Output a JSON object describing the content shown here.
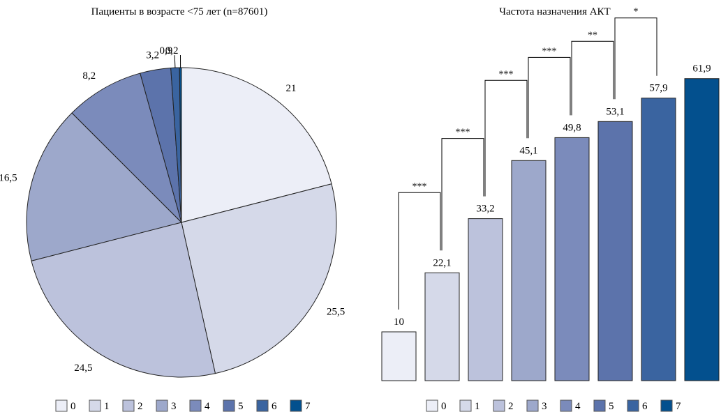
{
  "categories": [
    "0",
    "1",
    "2",
    "3",
    "4",
    "5",
    "6",
    "7"
  ],
  "colors": [
    "#eceef7",
    "#d5d9e9",
    "#bcc2dc",
    "#9da8cb",
    "#7b8bbb",
    "#5c73ab",
    "#3a64a0",
    "#03508e"
  ],
  "chart_data": [
    {
      "type": "pie",
      "title": "Пациенты в возрасте <75 лет (n=87601)",
      "categories": [
        "0",
        "1",
        "2",
        "3",
        "4",
        "5",
        "6",
        "7"
      ],
      "values": [
        21,
        25.5,
        24.5,
        16.5,
        8.2,
        3.2,
        0.9,
        0.2
      ],
      "labels": [
        "21",
        "25,5",
        "24,5",
        "16,5",
        "8,2",
        "3,2",
        "0,9",
        "0,2"
      ],
      "legend": "bottom"
    },
    {
      "type": "bar",
      "title": "Частота назначения АКТ",
      "categories": [
        "0",
        "1",
        "2",
        "3",
        "4",
        "5",
        "6",
        "7"
      ],
      "values": [
        10,
        22.1,
        33.2,
        45.1,
        49.8,
        53.1,
        57.9,
        61.9
      ],
      "labels": [
        "10",
        "22,1",
        "33,2",
        "45,1",
        "49,8",
        "53,1",
        "57,9",
        "61,9"
      ],
      "significance": [
        {
          "from": "0",
          "to": "1",
          "label": "***"
        },
        {
          "from": "1",
          "to": "2",
          "label": "***"
        },
        {
          "from": "2",
          "to": "3",
          "label": "***"
        },
        {
          "from": "3",
          "to": "4",
          "label": "***"
        },
        {
          "from": "4",
          "to": "5",
          "label": "**"
        },
        {
          "from": "5",
          "to": "6",
          "label": "*"
        }
      ],
      "grid": false,
      "legend": "bottom"
    }
  ]
}
